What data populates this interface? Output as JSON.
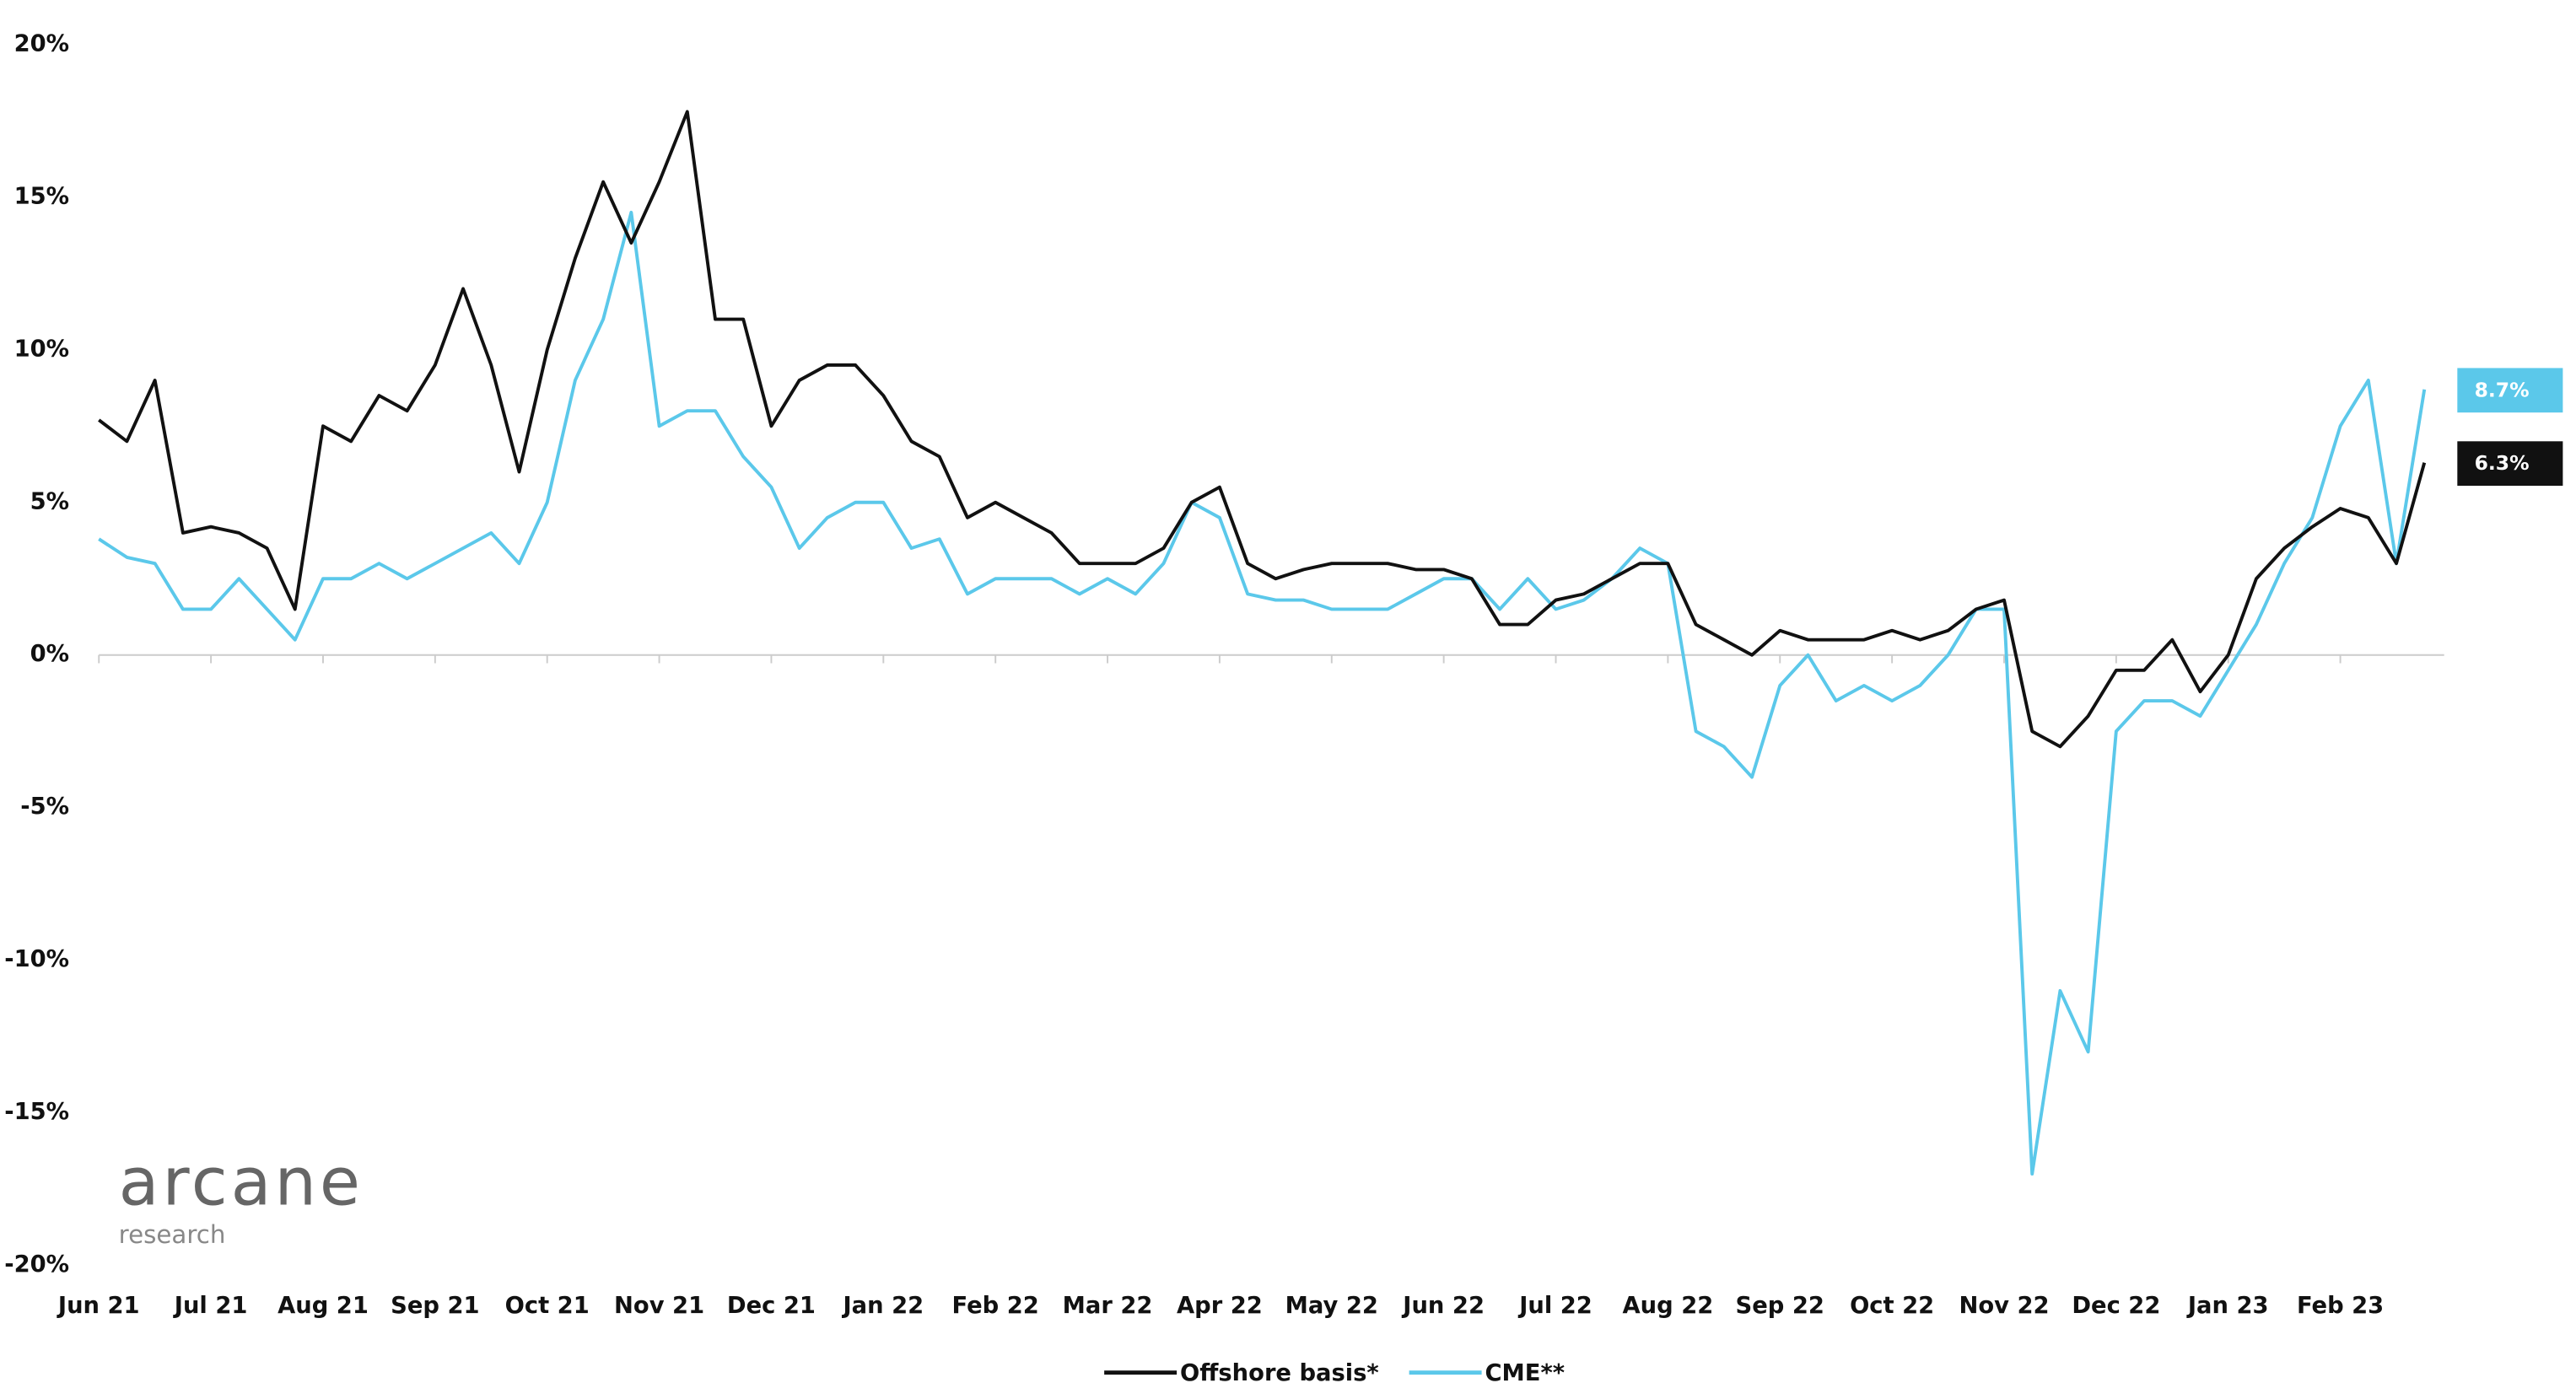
{
  "chart_data": {
    "type": "line",
    "categories": [
      "Jun 21",
      null,
      null,
      null,
      "Jul 21",
      null,
      null,
      null,
      "Aug 21",
      null,
      null,
      null,
      "Sep 21",
      null,
      null,
      null,
      "Oct 21",
      null,
      null,
      null,
      "Nov 21",
      null,
      null,
      null,
      "Dec 21",
      null,
      null,
      null,
      "Jan 22",
      null,
      null,
      null,
      "Feb 22",
      null,
      null,
      null,
      "Mar 22",
      null,
      null,
      null,
      "Apr 22",
      null,
      null,
      null,
      "May 22",
      null,
      null,
      null,
      "Jun 22",
      null,
      null,
      null,
      "Jul 22",
      null,
      null,
      null,
      "Aug 22",
      null,
      null,
      null,
      "Sep 22",
      null,
      null,
      null,
      "Oct 22",
      null,
      null,
      null,
      "Nov 22",
      null,
      null,
      null,
      "Dec 22",
      null,
      null,
      null,
      "Jan 23",
      null,
      null,
      null,
      "Feb 23",
      null,
      null,
      null
    ],
    "series": [
      {
        "name": "Offshore basis*",
        "color": "#111111",
        "values": [
          7.7,
          7.0,
          9.0,
          4.0,
          4.2,
          4.0,
          3.5,
          1.5,
          7.5,
          7.0,
          8.5,
          8.0,
          9.5,
          12.0,
          9.5,
          6.0,
          10.0,
          13.0,
          15.5,
          13.5,
          15.5,
          17.8,
          11.0,
          11.0,
          7.5,
          9.0,
          9.5,
          9.5,
          8.5,
          7.0,
          6.5,
          4.5,
          5.0,
          4.5,
          4.0,
          3.0,
          3.0,
          3.0,
          3.5,
          5.0,
          5.5,
          3.0,
          2.5,
          2.8,
          3.0,
          3.0,
          3.0,
          2.8,
          2.8,
          2.5,
          1.0,
          1.0,
          1.8,
          2.0,
          2.5,
          3.0,
          3.0,
          1.0,
          0.5,
          0.0,
          0.8,
          0.5,
          0.5,
          0.5,
          0.8,
          0.5,
          0.8,
          1.5,
          1.8,
          -2.5,
          -3.0,
          -2.0,
          -0.5,
          -0.5,
          0.5,
          -1.2,
          0.0,
          2.5,
          3.5,
          4.2,
          4.8,
          4.5,
          3.0,
          6.3
        ],
        "value_labels": [
          null,
          null,
          null,
          null,
          null,
          null,
          null,
          null,
          null,
          null,
          null,
          null,
          null,
          null,
          null,
          null,
          null,
          null,
          null,
          null,
          null,
          null,
          null,
          null,
          null,
          null,
          null,
          null,
          null,
          null,
          null,
          null,
          null,
          null,
          null,
          null,
          null,
          null,
          null,
          null,
          null,
          null,
          null,
          null,
          null,
          null,
          null,
          null,
          null,
          null,
          null,
          null,
          null,
          null,
          null,
          null,
          null,
          null,
          null,
          null,
          null,
          null,
          null,
          null,
          null,
          null,
          null,
          null,
          null,
          null,
          null,
          null,
          null,
          null,
          null,
          null,
          null,
          null,
          null,
          null,
          null,
          null,
          null,
          "6.3%"
        ]
      },
      {
        "name": "CME**",
        "color": "#5bc8ea",
        "values": [
          3.8,
          3.2,
          3.0,
          1.5,
          1.5,
          2.5,
          1.5,
          0.5,
          2.5,
          2.5,
          3.0,
          2.5,
          3.0,
          3.5,
          4.0,
          3.0,
          5.0,
          9.0,
          11.0,
          14.5,
          7.5,
          8.0,
          8.0,
          6.5,
          5.5,
          3.5,
          4.5,
          5.0,
          5.0,
          3.5,
          3.8,
          2.0,
          2.5,
          2.5,
          2.5,
          2.0,
          2.5,
          2.0,
          3.0,
          5.0,
          4.5,
          2.0,
          1.8,
          1.8,
          1.5,
          1.5,
          1.5,
          2.0,
          2.5,
          2.5,
          1.5,
          2.5,
          1.5,
          1.8,
          2.5,
          3.5,
          3.0,
          -2.5,
          -3.0,
          -4.0,
          -1.0,
          0.0,
          -1.5,
          -1.0,
          -1.5,
          -1.0,
          0.0,
          1.5,
          1.5,
          -17.0,
          -11.0,
          -13.0,
          -2.5,
          -1.5,
          -1.5,
          -2.0,
          -0.5,
          1.0,
          3.0,
          4.5,
          7.5,
          9.0,
          3.0,
          8.7
        ],
        "value_labels": [
          null,
          null,
          null,
          null,
          null,
          null,
          null,
          null,
          null,
          null,
          null,
          null,
          null,
          null,
          null,
          null,
          null,
          null,
          null,
          null,
          null,
          null,
          null,
          null,
          null,
          null,
          null,
          null,
          null,
          null,
          null,
          null,
          null,
          null,
          null,
          null,
          null,
          null,
          null,
          null,
          null,
          null,
          null,
          null,
          null,
          null,
          null,
          null,
          null,
          null,
          null,
          null,
          null,
          null,
          null,
          null,
          null,
          null,
          null,
          null,
          null,
          null,
          null,
          null,
          null,
          null,
          null,
          null,
          null,
          null,
          null,
          null,
          null,
          null,
          null,
          null,
          null,
          null,
          null,
          null,
          null,
          null,
          null,
          "8.7%"
        ]
      }
    ],
    "ylim": [
      -20,
      20
    ],
    "yticks": [
      {
        "value": -20,
        "label": "-20%"
      },
      {
        "value": -15,
        "label": "-15%"
      },
      {
        "value": -10,
        "label": "-10%"
      },
      {
        "value": -5,
        "label": "-5%"
      },
      {
        "value": 0,
        "label": "0%"
      },
      {
        "value": 5,
        "label": "5%"
      },
      {
        "value": 10,
        "label": "10%"
      },
      {
        "value": 15,
        "label": "15%"
      },
      {
        "value": 20,
        "label": "20%"
      }
    ],
    "legend": "bottom",
    "watermark": {
      "name": "arcane",
      "subtitle": "research"
    }
  }
}
